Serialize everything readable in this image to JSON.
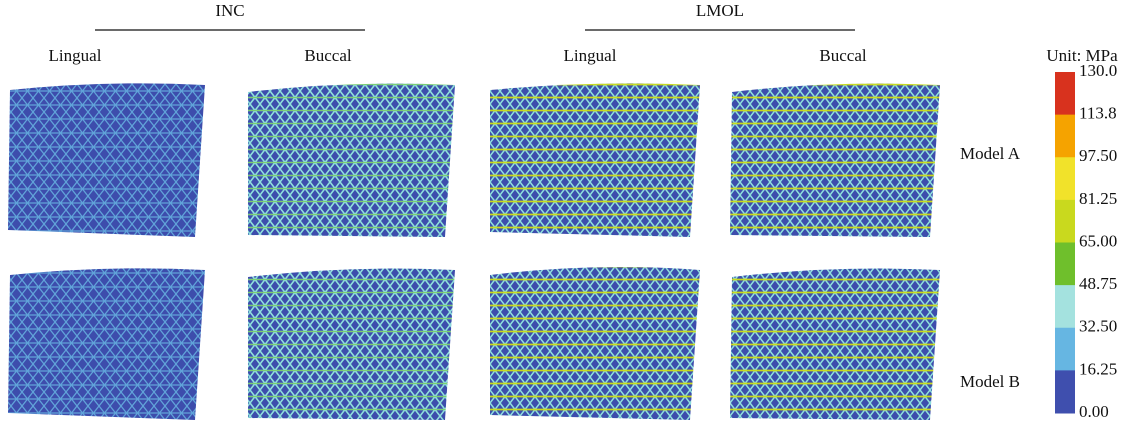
{
  "groups": [
    {
      "title": "INC",
      "columns": [
        "Lingual",
        "Buccal"
      ]
    },
    {
      "title": "LMOL",
      "columns": [
        "Lingual",
        "Buccal"
      ]
    }
  ],
  "rows": [
    "Model A",
    "Model B"
  ],
  "colorbar": {
    "title": "Unit: MPa",
    "labels": [
      "130.0",
      "113.8",
      "97.50",
      "81.25",
      "65.00",
      "48.75",
      "32.50",
      "16.25",
      "0.00"
    ],
    "colors": [
      "#d8321e",
      "#f5a300",
      "#f1e22a",
      "#c9d91e",
      "#6fbf2c",
      "#a4e2df",
      "#66b6e2",
      "#3f4fae"
    ]
  }
}
